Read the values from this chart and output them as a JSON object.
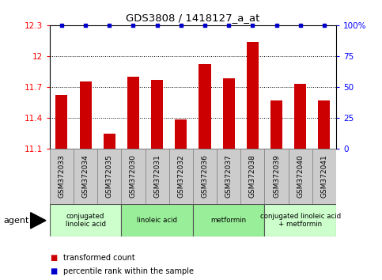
{
  "title": "GDS3808 / 1418127_a_at",
  "samples": [
    "GSM372033",
    "GSM372034",
    "GSM372035",
    "GSM372030",
    "GSM372031",
    "GSM372032",
    "GSM372036",
    "GSM372037",
    "GSM372038",
    "GSM372039",
    "GSM372040",
    "GSM372041"
  ],
  "bar_values": [
    11.62,
    11.75,
    11.24,
    11.8,
    11.77,
    11.38,
    11.92,
    11.78,
    12.14,
    11.57,
    11.73,
    11.57
  ],
  "percentile_values": [
    100,
    100,
    100,
    100,
    100,
    100,
    100,
    100,
    100,
    100,
    100,
    100
  ],
  "bar_color": "#cc0000",
  "percentile_color": "#0000cc",
  "ylim_left": [
    11.1,
    12.3
  ],
  "ylim_right": [
    0,
    100
  ],
  "yticks_left": [
    11.1,
    11.4,
    11.7,
    12.0,
    12.3
  ],
  "yticks_right": [
    0,
    25,
    50,
    75,
    100
  ],
  "ytick_labels_left": [
    "11.1",
    "11.4",
    "11.7",
    "12",
    "12.3"
  ],
  "ytick_labels_right": [
    "0",
    "25",
    "50",
    "75",
    "100%"
  ],
  "groups": [
    {
      "label": "conjugated\nlinoleic acid",
      "start": 0,
      "end": 3,
      "color": "#ccffcc"
    },
    {
      "label": "linoleic acid",
      "start": 3,
      "end": 6,
      "color": "#99ee99"
    },
    {
      "label": "metformin",
      "start": 6,
      "end": 9,
      "color": "#99ee99"
    },
    {
      "label": "conjugated linoleic acid\n+ metformin",
      "start": 9,
      "end": 12,
      "color": "#ccffcc"
    }
  ],
  "agent_label": "agent",
  "legend_items": [
    {
      "label": "transformed count",
      "color": "#cc0000"
    },
    {
      "label": "percentile rank within the sample",
      "color": "#0000cc"
    }
  ],
  "bar_width": 0.5,
  "sample_bg_color": "#cccccc",
  "plot_bg_color": "#ffffff",
  "dotted_grid_yticks": [
    11.4,
    11.7,
    12.0
  ]
}
